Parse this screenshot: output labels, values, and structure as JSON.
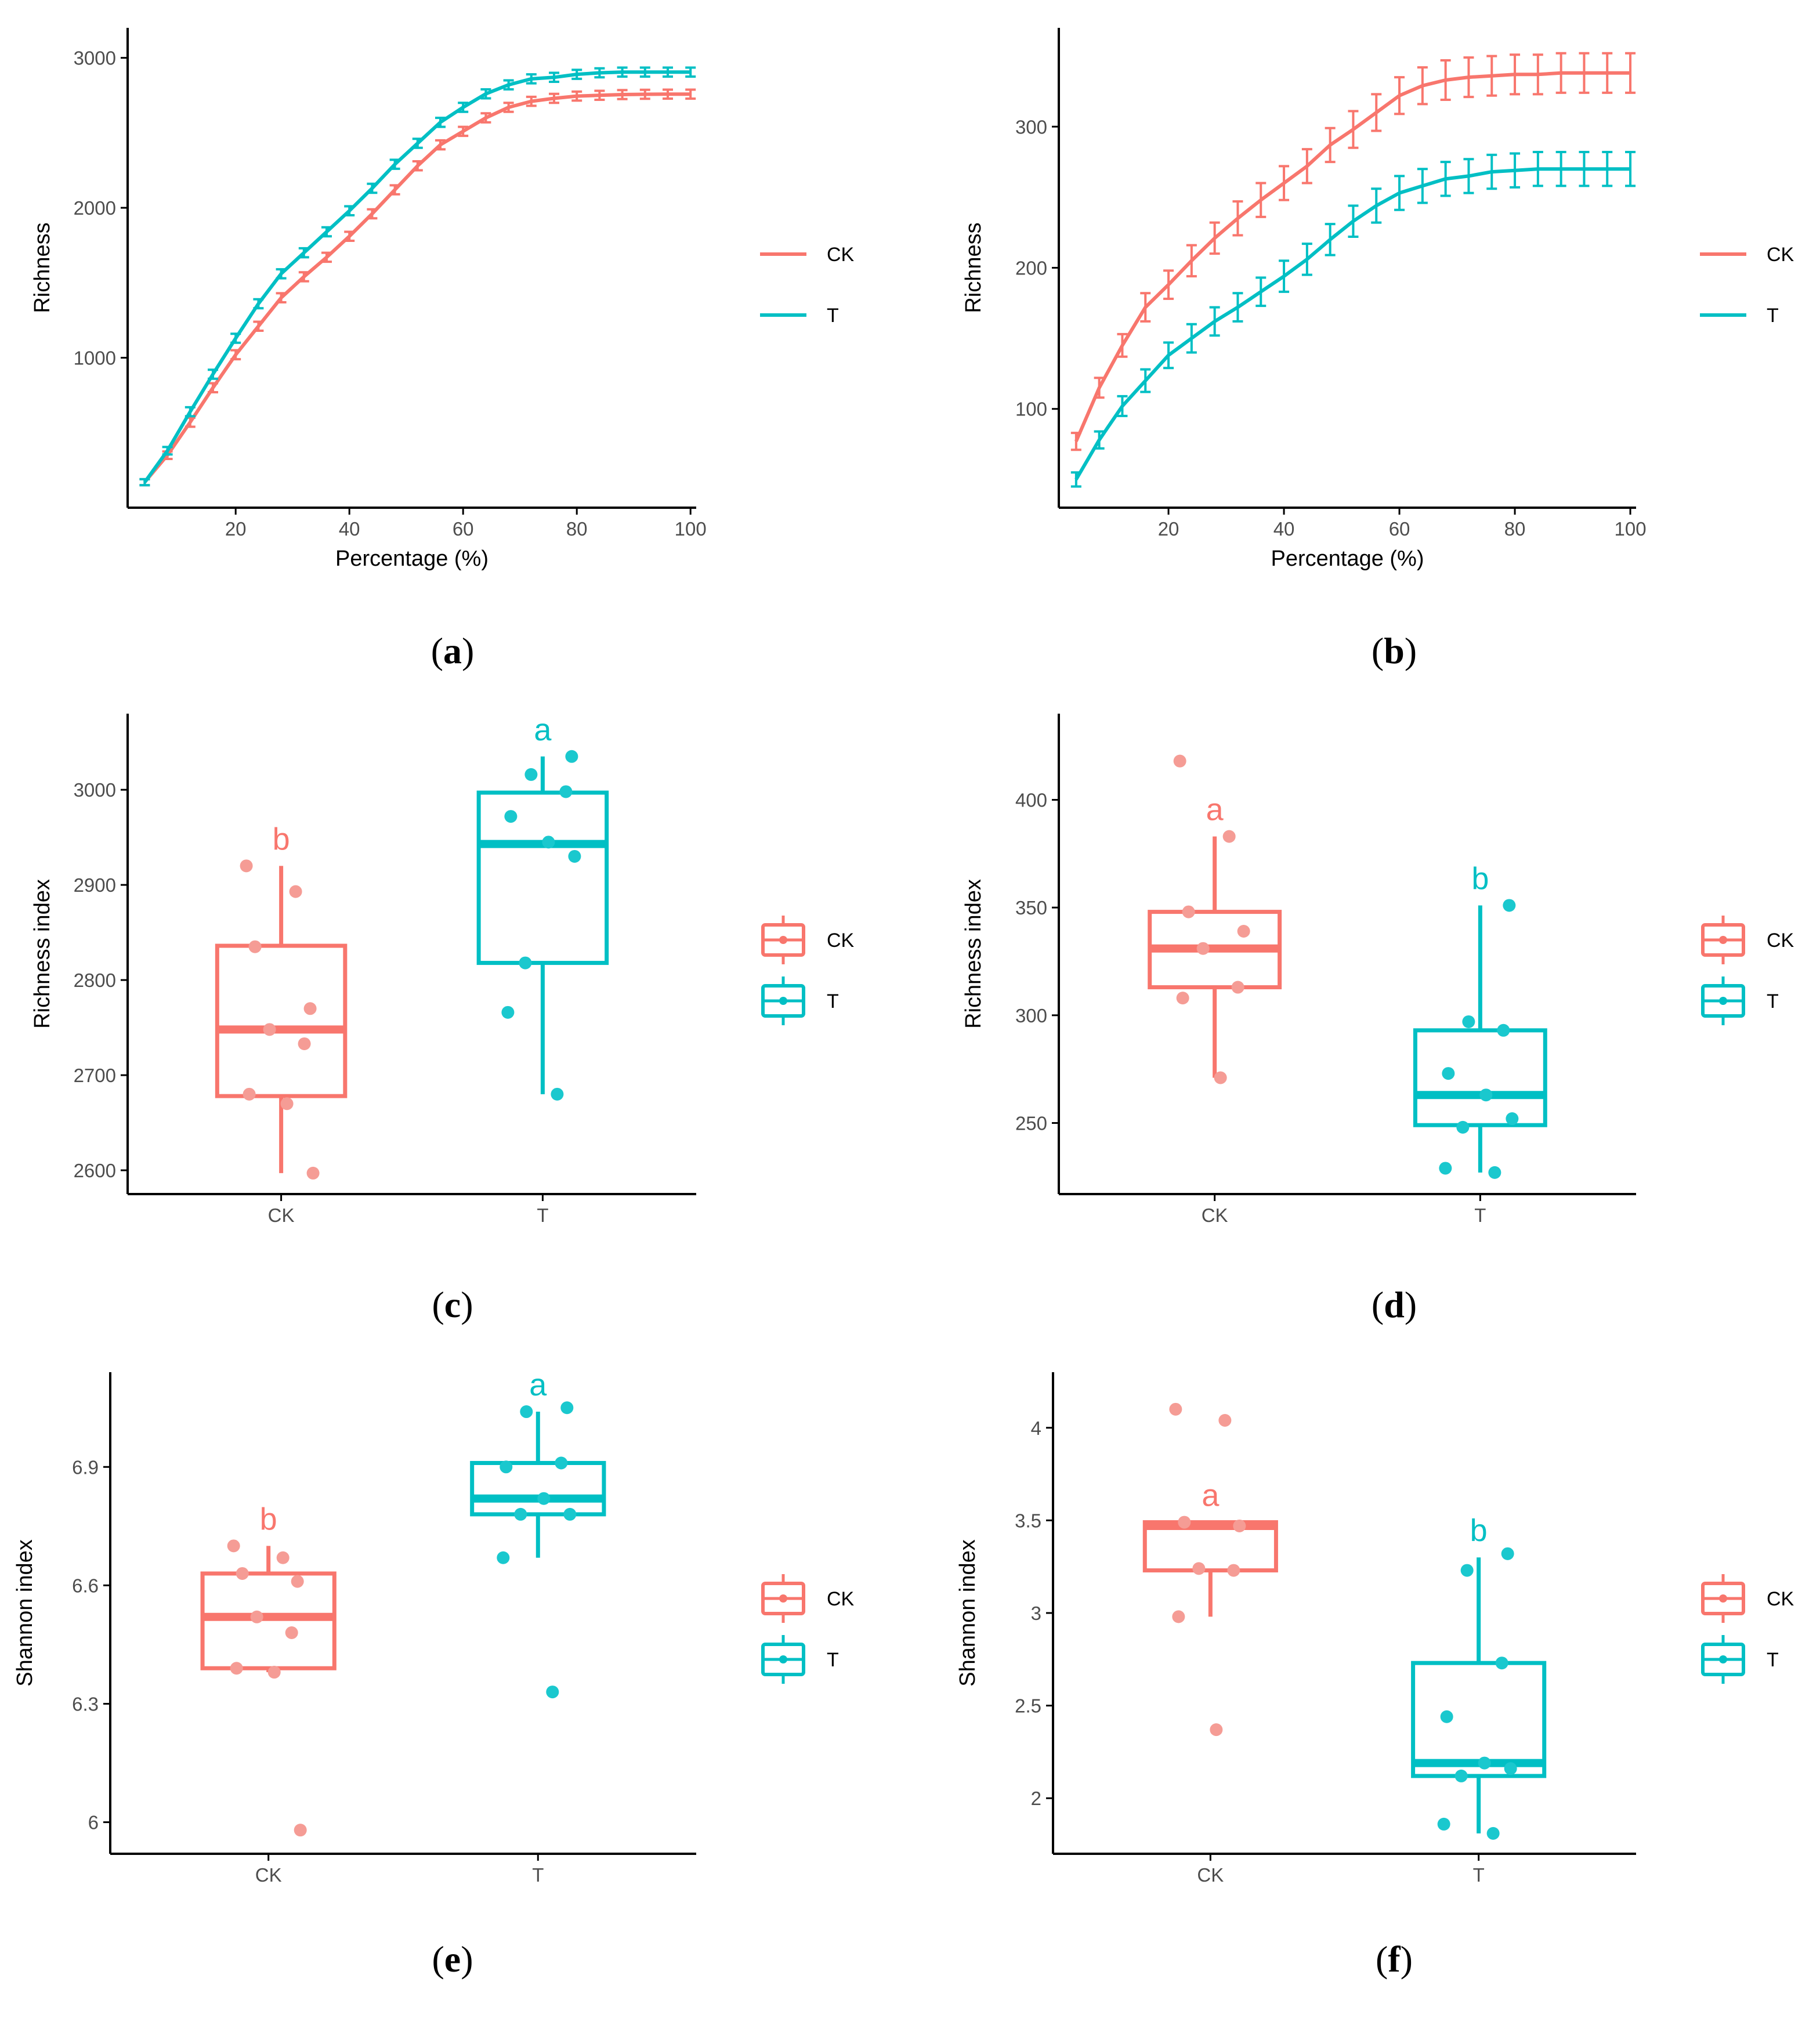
{
  "colors": {
    "CK": "#F8766D",
    "T": "#00BFC4",
    "CK_point": "#F59C95",
    "T_point": "#1AC8CE",
    "axis": "#000000",
    "tick_text": "#4D4D4D"
  },
  "legend": {
    "CK": "CK",
    "T": "T"
  },
  "panel_labels": [
    {
      "open": "(",
      "letter": "a",
      "close": ")"
    },
    {
      "open": "(",
      "letter": "b",
      "close": ")"
    },
    {
      "open": "(",
      "letter": "c",
      "close": ")"
    },
    {
      "open": "(",
      "letter": "d",
      "close": ")"
    },
    {
      "open": "(",
      "letter": "e",
      "close": ")"
    },
    {
      "open": "(",
      "letter": "f",
      "close": ")"
    }
  ],
  "chart_data": [
    {
      "id": "a",
      "type": "line",
      "xlabel": "Percentage (%)",
      "ylabel": "Richness",
      "xlim": [
        1,
        101
      ],
      "ylim": [
        0,
        3200
      ],
      "xticks": [
        20,
        40,
        60,
        80,
        100
      ],
      "yticks": [
        1000,
        2000,
        3000
      ],
      "x": [
        4,
        8,
        12,
        16,
        20,
        24,
        28,
        32,
        36,
        40,
        44,
        48,
        52,
        56,
        60,
        64,
        68,
        72,
        76,
        80,
        84,
        88,
        92,
        96,
        100
      ],
      "series": [
        {
          "name": "CK",
          "values": [
            170,
            350,
            570,
            800,
            1020,
            1210,
            1400,
            1540,
            1670,
            1810,
            1960,
            2120,
            2280,
            2420,
            2510,
            2600,
            2670,
            2710,
            2730,
            2745,
            2750,
            2755,
            2757,
            2758,
            2758
          ],
          "err": [
            20,
            25,
            30,
            30,
            30,
            30,
            30,
            30,
            30,
            30,
            30,
            30,
            30,
            30,
            30,
            30,
            30,
            30,
            30,
            30,
            30,
            30,
            30,
            30,
            30
          ]
        },
        {
          "name": "T",
          "values": [
            170,
            380,
            640,
            890,
            1130,
            1360,
            1560,
            1700,
            1840,
            1980,
            2130,
            2290,
            2430,
            2570,
            2670,
            2760,
            2820,
            2860,
            2870,
            2890,
            2900,
            2905,
            2905,
            2905,
            2905
          ],
          "err": [
            20,
            25,
            30,
            30,
            30,
            30,
            30,
            30,
            30,
            30,
            30,
            30,
            30,
            30,
            30,
            30,
            30,
            30,
            30,
            30,
            30,
            30,
            30,
            30,
            30
          ]
        }
      ]
    },
    {
      "id": "b",
      "type": "line",
      "xlabel": "Percentage (%)",
      "ylabel": "Richness",
      "xlim": [
        1,
        101
      ],
      "ylim": [
        30,
        370
      ],
      "xticks": [
        20,
        40,
        60,
        80,
        100
      ],
      "yticks": [
        100,
        200,
        300
      ],
      "x": [
        4,
        8,
        12,
        16,
        20,
        24,
        28,
        32,
        36,
        40,
        44,
        48,
        52,
        56,
        60,
        64,
        68,
        72,
        76,
        80,
        84,
        88,
        92,
        96,
        100
      ],
      "series": [
        {
          "name": "CK",
          "values": [
            77,
            115,
            145,
            172,
            188,
            205,
            221,
            235,
            248,
            260,
            272,
            287,
            298,
            310,
            322,
            329,
            333,
            335,
            336,
            337,
            337,
            338,
            338,
            338,
            338
          ],
          "err": [
            6,
            7,
            8,
            10,
            10,
            11,
            11,
            12,
            12,
            12,
            12,
            12,
            13,
            13,
            13,
            13,
            14,
            14,
            14,
            14,
            14,
            14,
            14,
            14,
            14
          ]
        },
        {
          "name": "T",
          "values": [
            50,
            78,
            102,
            120,
            138,
            150,
            162,
            172,
            183,
            194,
            206,
            220,
            233,
            244,
            253,
            258,
            263,
            265,
            268,
            269,
            270,
            270,
            270,
            270,
            270
          ],
          "err": [
            5,
            6,
            7,
            8,
            9,
            10,
            10,
            10,
            10,
            11,
            11,
            11,
            11,
            12,
            12,
            12,
            12,
            12,
            12,
            12,
            12,
            12,
            12,
            12,
            12
          ]
        }
      ]
    },
    {
      "id": "c",
      "type": "box",
      "xlabel": "",
      "ylabel": "Richness index",
      "categories": [
        "CK",
        "T"
      ],
      "ylim": [
        2575,
        3080
      ],
      "yticks": [
        2600,
        2700,
        2800,
        2900,
        3000
      ],
      "groups": [
        {
          "name": "CK",
          "q1": 2678,
          "median": 2748,
          "q3": 2836,
          "whisker_low": 2597,
          "whisker_high": 2920,
          "letter": "b",
          "points": [
            2920,
            2893,
            2835,
            2770,
            2748,
            2733,
            2680,
            2670,
            2597
          ]
        },
        {
          "name": "T",
          "q1": 2818,
          "median": 2943,
          "q3": 2997,
          "whisker_low": 2680,
          "whisker_high": 3035,
          "letter": "a",
          "points": [
            3035,
            3016,
            2998,
            2972,
            2945,
            2930,
            2818,
            2766,
            2680
          ]
        }
      ]
    },
    {
      "id": "d",
      "type": "box",
      "xlabel": "",
      "ylabel": "Richness index",
      "categories": [
        "CK",
        "T"
      ],
      "ylim": [
        217,
        440
      ],
      "yticks": [
        250,
        300,
        350,
        400
      ],
      "groups": [
        {
          "name": "CK",
          "q1": 313,
          "median": 331,
          "q3": 348,
          "whisker_low": 271,
          "whisker_high": 383,
          "letter": "a",
          "points": [
            418,
            383,
            348,
            339,
            331,
            313,
            308,
            271
          ]
        },
        {
          "name": "T",
          "q1": 249,
          "median": 263,
          "q3": 293,
          "whisker_low": 227,
          "whisker_high": 351,
          "letter": "b",
          "points": [
            351,
            297,
            293,
            273,
            263,
            252,
            248,
            229,
            227
          ]
        }
      ]
    },
    {
      "id": "e",
      "type": "box",
      "xlabel": "",
      "ylabel": "Shannon index",
      "categories": [
        "CK",
        "T"
      ],
      "ylim": [
        5.92,
        7.14
      ],
      "yticks": [
        6.0,
        6.3,
        6.6,
        6.9
      ],
      "groups": [
        {
          "name": "CK",
          "q1": 6.39,
          "median": 6.52,
          "q3": 6.63,
          "whisker_low": 6.38,
          "whisker_high": 6.7,
          "letter": "b",
          "points": [
            6.7,
            6.67,
            6.63,
            6.61,
            6.52,
            6.48,
            6.39,
            6.38,
            5.98
          ]
        },
        {
          "name": "T",
          "q1": 6.78,
          "median": 6.82,
          "q3": 6.91,
          "whisker_low": 6.67,
          "whisker_high": 7.04,
          "letter": "a",
          "points": [
            7.05,
            7.04,
            6.91,
            6.9,
            6.82,
            6.78,
            6.78,
            6.67,
            6.33
          ]
        }
      ]
    },
    {
      "id": "f",
      "type": "box",
      "xlabel": "",
      "ylabel": "Shannon index",
      "categories": [
        "CK",
        "T"
      ],
      "ylim": [
        1.7,
        4.3
      ],
      "yticks": [
        2.0,
        2.5,
        3.0,
        3.5,
        4.0
      ],
      "groups": [
        {
          "name": "CK",
          "q1": 3.23,
          "median": 3.47,
          "q3": 3.49,
          "whisker_low": 2.98,
          "whisker_high": 3.49,
          "letter": "a",
          "points": [
            4.1,
            4.04,
            3.49,
            3.47,
            3.24,
            3.23,
            2.98,
            2.37
          ]
        },
        {
          "name": "T",
          "q1": 2.12,
          "median": 2.19,
          "q3": 2.73,
          "whisker_low": 1.81,
          "whisker_high": 3.3,
          "letter": "b",
          "points": [
            3.32,
            3.23,
            2.73,
            2.44,
            2.19,
            2.16,
            2.12,
            1.86,
            1.81
          ]
        }
      ]
    }
  ]
}
